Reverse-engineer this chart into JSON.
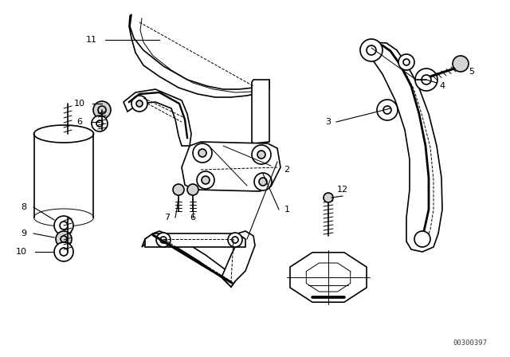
{
  "background_color": "#ffffff",
  "line_color": "#000000",
  "part_number_text": "00300397",
  "label_fontsize": 8,
  "part_number_fontsize": 6.5
}
